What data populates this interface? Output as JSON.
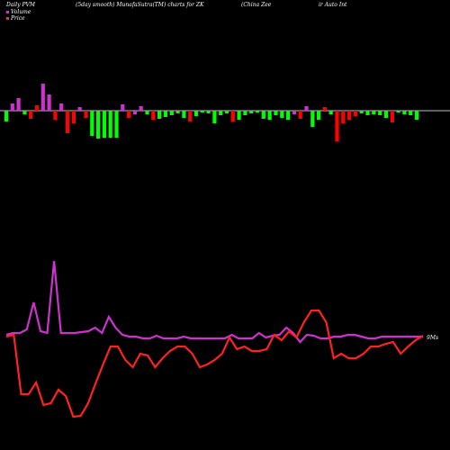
{
  "header": {
    "left": "Daily PVM",
    "middle": "(5day smooth) MunafaSutra(TM) charts for ZK",
    "right_a": "(China Zee",
    "right_b": "ir Auto Int"
  },
  "legend": {
    "volume_label": "Volume",
    "price_label": "Price",
    "volume_color": "#cc33cc",
    "price_color": "#ff3333"
  },
  "colors": {
    "up": "#00ff00",
    "down": "#ff0000",
    "flat_up": "#cc33cc",
    "volume_line": "#cc33cc",
    "price_line": "#ff2222",
    "baseline": "#ffffff"
  },
  "chart_data": {
    "type": "bar",
    "title": "(5day smooth) MunafaSutra(TM) charts for ZK",
    "end_label": "9Ms",
    "volume_bars": [
      {
        "v": -12,
        "c": "up"
      },
      {
        "v": 8,
        "c": "flat"
      },
      {
        "v": 14,
        "c": "flat"
      },
      {
        "v": -4,
        "c": "up"
      },
      {
        "v": -9,
        "c": "down"
      },
      {
        "v": 6,
        "c": "down"
      },
      {
        "v": 30,
        "c": "flat"
      },
      {
        "v": 18,
        "c": "flat"
      },
      {
        "v": -10,
        "c": "down"
      },
      {
        "v": 8,
        "c": "flat"
      },
      {
        "v": -25,
        "c": "down"
      },
      {
        "v": -14,
        "c": "down"
      },
      {
        "v": 4,
        "c": "flat"
      },
      {
        "v": -8,
        "c": "down"
      },
      {
        "v": -28,
        "c": "up"
      },
      {
        "v": -31,
        "c": "up"
      },
      {
        "v": -30,
        "c": "up"
      },
      {
        "v": -30,
        "c": "up"
      },
      {
        "v": -30,
        "c": "up"
      },
      {
        "v": 7,
        "c": "flat"
      },
      {
        "v": -8,
        "c": "down"
      },
      {
        "v": -4,
        "c": "flat"
      },
      {
        "v": 5,
        "c": "flat"
      },
      {
        "v": -4,
        "c": "up"
      },
      {
        "v": -10,
        "c": "down"
      },
      {
        "v": -9,
        "c": "up"
      },
      {
        "v": -7,
        "c": "up"
      },
      {
        "v": -5,
        "c": "up"
      },
      {
        "v": -3,
        "c": "up"
      },
      {
        "v": -8,
        "c": "up"
      },
      {
        "v": -12,
        "c": "down"
      },
      {
        "v": -6,
        "c": "up"
      },
      {
        "v": -2,
        "c": "up"
      },
      {
        "v": -3,
        "c": "up"
      },
      {
        "v": -14,
        "c": "up"
      },
      {
        "v": -5,
        "c": "up"
      },
      {
        "v": -3,
        "c": "up"
      },
      {
        "v": -12,
        "c": "down"
      },
      {
        "v": -10,
        "c": "up"
      },
      {
        "v": -5,
        "c": "up"
      },
      {
        "v": -3,
        "c": "up"
      },
      {
        "v": -2,
        "c": "up"
      },
      {
        "v": -9,
        "c": "up"
      },
      {
        "v": -10,
        "c": "up"
      },
      {
        "v": -5,
        "c": "up"
      },
      {
        "v": -8,
        "c": "up"
      },
      {
        "v": -10,
        "c": "up"
      },
      {
        "v": -4,
        "c": "flat"
      },
      {
        "v": -9,
        "c": "down"
      },
      {
        "v": 5,
        "c": "flat"
      },
      {
        "v": -18,
        "c": "up"
      },
      {
        "v": -10,
        "c": "up"
      },
      {
        "v": 4,
        "c": "down"
      },
      {
        "v": -4,
        "c": "up"
      },
      {
        "v": -34,
        "c": "down"
      },
      {
        "v": -14,
        "c": "down"
      },
      {
        "v": -10,
        "c": "down"
      },
      {
        "v": -6,
        "c": "down"
      },
      {
        "v": -3,
        "c": "up"
      },
      {
        "v": -5,
        "c": "up"
      },
      {
        "v": -4,
        "c": "up"
      },
      {
        "v": -5,
        "c": "up"
      },
      {
        "v": -8,
        "c": "up"
      },
      {
        "v": -13,
        "c": "down"
      },
      {
        "v": -2,
        "c": "up"
      },
      {
        "v": -4,
        "c": "up"
      },
      {
        "v": -5,
        "c": "up"
      },
      {
        "v": -10,
        "c": "up"
      }
    ],
    "volume_line": [
      372,
      370,
      370,
      366,
      336,
      368,
      370,
      370,
      290,
      370,
      370,
      370,
      370,
      369,
      368,
      364,
      370,
      370,
      372,
      374,
      376,
      376,
      376,
      376,
      376,
      376,
      373,
      376,
      376,
      376,
      376,
      376,
      376,
      376,
      376,
      372,
      376,
      376,
      376,
      376,
      376,
      370,
      375,
      373,
      372,
      364,
      370,
      380,
      372,
      373,
      376,
      376,
      376,
      376,
      374,
      374,
      372,
      372,
      374,
      376,
      376,
      374,
      374,
      374,
      374,
      374,
      374,
      374
    ],
    "volume_line_alt": [
      372,
      370,
      370,
      366,
      336,
      368,
      370,
      290,
      370,
      370,
      370,
      369,
      368,
      364,
      370,
      352,
      364,
      372,
      374,
      374,
      376,
      376,
      373,
      376,
      376,
      376,
      374,
      376,
      376,
      376,
      376,
      376,
      376,
      372,
      376,
      376,
      376,
      370,
      375,
      373,
      372,
      364,
      370,
      380,
      372,
      373,
      376,
      376,
      374,
      374,
      372,
      372,
      374,
      376,
      376,
      374,
      374,
      374,
      374,
      374,
      374,
      374
    ],
    "price_line": [
      374,
      372,
      438,
      438,
      425,
      450,
      448,
      433,
      440,
      463,
      462,
      448,
      426,
      405,
      385,
      385,
      400,
      408,
      393,
      395,
      408,
      398,
      390,
      385,
      385,
      393,
      408,
      405,
      400,
      393,
      375,
      388,
      385,
      390,
      390,
      388,
      372,
      378,
      368,
      375,
      358,
      345,
      345,
      358,
      398,
      393,
      398,
      398,
      393,
      385,
      385,
      382,
      380,
      393,
      385,
      378,
      373
    ],
    "price_series": [
      374,
      372,
      438,
      438,
      425,
      450,
      448,
      433,
      440,
      463,
      462,
      448,
      426,
      405,
      385,
      385,
      400,
      408,
      393,
      395,
      408,
      398,
      390,
      385,
      385,
      393,
      408,
      405,
      400,
      393,
      375,
      388,
      385,
      390,
      390,
      388,
      372,
      378,
      368,
      375,
      358,
      345,
      345,
      358,
      398,
      393,
      398,
      398,
      393,
      385,
      385,
      382,
      380,
      393,
      385,
      378,
      373
    ]
  }
}
